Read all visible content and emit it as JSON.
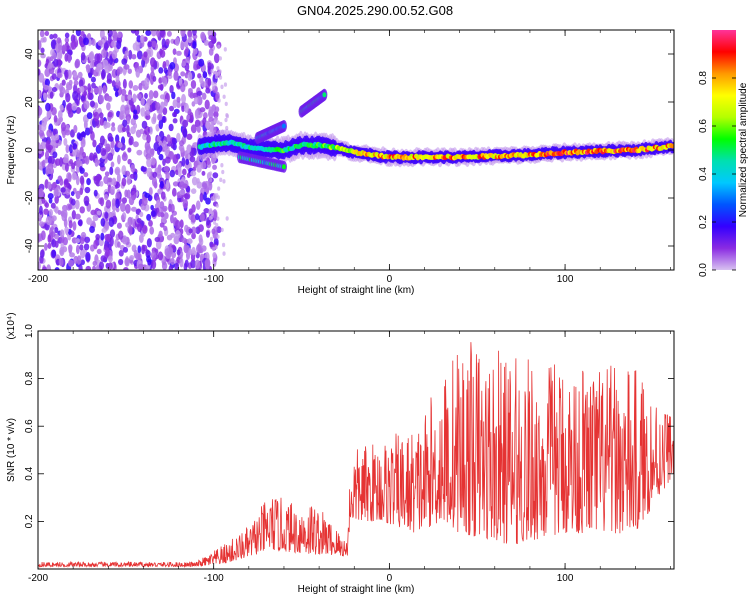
{
  "figure": {
    "title": "GN04.2025.290.00.52.G08"
  },
  "chart_data": [
    {
      "type": "heatmap",
      "name": "spectrogram",
      "xlabel": "Height of straight line (km)",
      "ylabel": "Frequency (Hz)",
      "xlim": [
        -200,
        162
      ],
      "ylim": [
        -50,
        50
      ],
      "xticks": [
        -200,
        -100,
        0,
        100
      ],
      "yticks": [
        40,
        20,
        0,
        -20,
        -40
      ],
      "colorbar": {
        "label": "Normalized spectral amplitude",
        "range": [
          0,
          1
        ],
        "ticks": [
          0.0,
          0.2,
          0.4,
          0.6,
          0.8
        ],
        "colors": [
          "#d8c2f0",
          "#8a2be2",
          "#3300ff",
          "#0055ff",
          "#00c8ff",
          "#00e0b0",
          "#00ff00",
          "#b4ff00",
          "#ffff00",
          "#ff9900",
          "#ff0000",
          "#ff3399"
        ]
      },
      "noise_region": {
        "x_range": [
          -200,
          -103
        ],
        "y_range": [
          -50,
          50
        ],
        "amplitude": 0.1
      },
      "main_ridge": [
        {
          "x": -108,
          "y": 1.0,
          "amp": 0.45
        },
        {
          "x": -100,
          "y": 2.5,
          "amp": 0.5
        },
        {
          "x": -90,
          "y": 3.0,
          "amp": 0.45
        },
        {
          "x": -80,
          "y": 1.0,
          "amp": 0.5
        },
        {
          "x": -70,
          "y": 0.0,
          "amp": 0.5
        },
        {
          "x": -60,
          "y": 0.0,
          "amp": 0.55
        },
        {
          "x": -50,
          "y": 2.0,
          "amp": 0.5
        },
        {
          "x": -40,
          "y": 2.0,
          "amp": 0.55
        },
        {
          "x": -30,
          "y": 1.0,
          "amp": 0.65
        },
        {
          "x": -20,
          "y": -1.0,
          "amp": 0.75
        },
        {
          "x": -10,
          "y": -2.0,
          "amp": 0.8
        },
        {
          "x": 0,
          "y": -3.0,
          "amp": 0.85
        },
        {
          "x": 20,
          "y": -3.0,
          "amp": 0.85
        },
        {
          "x": 40,
          "y": -3.0,
          "amp": 0.85
        },
        {
          "x": 60,
          "y": -2.5,
          "amp": 0.85
        },
        {
          "x": 80,
          "y": -2.0,
          "amp": 0.85
        },
        {
          "x": 100,
          "y": -1.0,
          "amp": 0.9
        },
        {
          "x": 120,
          "y": -0.5,
          "amp": 0.9
        },
        {
          "x": 140,
          "y": 0.0,
          "amp": 0.9
        },
        {
          "x": 160,
          "y": 1.5,
          "amp": 0.85
        }
      ],
      "branches": [
        {
          "from": [
            -75,
            5
          ],
          "to": [
            -60,
            10
          ],
          "amp": 0.4
        },
        {
          "from": [
            -50,
            16
          ],
          "to": [
            -37,
            23
          ],
          "amp": 0.45
        },
        {
          "from": [
            -85,
            -3
          ],
          "to": [
            -60,
            -7
          ],
          "amp": 0.45
        }
      ]
    },
    {
      "type": "line",
      "name": "snr",
      "xlabel": "Height of straight line (km)",
      "ylabel": "SNR (10 * v/v)",
      "scale_label": "(x10⁴)",
      "xlim": [
        -200,
        162
      ],
      "ylim": [
        0,
        1.0
      ],
      "xticks": [
        -200,
        -100,
        0,
        100
      ],
      "yticks": [
        0.2,
        0.4,
        0.6,
        0.8,
        1.0
      ],
      "color": "#e53333",
      "envelope": [
        {
          "x": -200,
          "base": 0.01,
          "peak": 0.03
        },
        {
          "x": -110,
          "base": 0.01,
          "peak": 0.03
        },
        {
          "x": -95,
          "base": 0.02,
          "peak": 0.1
        },
        {
          "x": -80,
          "base": 0.05,
          "peak": 0.18
        },
        {
          "x": -68,
          "base": 0.08,
          "peak": 0.32
        },
        {
          "x": -55,
          "base": 0.07,
          "peak": 0.28
        },
        {
          "x": -45,
          "base": 0.06,
          "peak": 0.3
        },
        {
          "x": -35,
          "base": 0.06,
          "peak": 0.22
        },
        {
          "x": -24,
          "base": 0.05,
          "peak": 0.12
        },
        {
          "x": -22,
          "base": 0.2,
          "peak": 0.5
        },
        {
          "x": -5,
          "base": 0.2,
          "peak": 0.55
        },
        {
          "x": 15,
          "base": 0.15,
          "peak": 0.6
        },
        {
          "x": 30,
          "base": 0.2,
          "peak": 0.82
        },
        {
          "x": 40,
          "base": 0.15,
          "peak": 0.98
        },
        {
          "x": 70,
          "base": 0.1,
          "peak": 0.9
        },
        {
          "x": 100,
          "base": 0.15,
          "peak": 0.88
        },
        {
          "x": 140,
          "base": 0.15,
          "peak": 0.85
        },
        {
          "x": 162,
          "base": 0.4,
          "peak": 0.66
        }
      ]
    }
  ]
}
